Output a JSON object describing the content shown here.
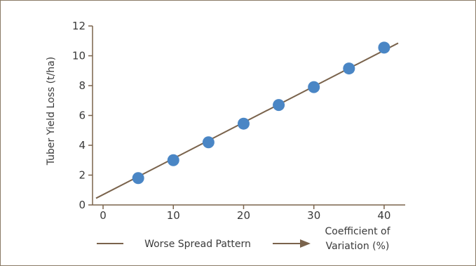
{
  "chart_data": {
    "type": "scatter",
    "x": [
      5,
      10,
      15,
      20,
      25,
      30,
      35,
      40
    ],
    "y": [
      1.8,
      3.0,
      4.2,
      5.45,
      6.7,
      7.9,
      9.15,
      10.55
    ],
    "fit_line": {
      "x": [
        -1,
        42
      ],
      "y": [
        0.45,
        10.85
      ]
    },
    "xlim": [
      -1.5,
      43
    ],
    "ylim": [
      0,
      12
    ],
    "x_ticks": [
      "0",
      "10",
      "20",
      "30",
      "40"
    ],
    "y_ticks": [
      "0",
      "2",
      "4",
      "6",
      "8",
      "10",
      "12"
    ],
    "xlabel": "Coefficient of Variation (%)",
    "xlabel_line1": "Coefficient of",
    "xlabel_line2": "Variation (%)",
    "ylabel": "Tuber Yield Loss (t/ha)",
    "annotation": "Worse Spread Pattern",
    "grid": false,
    "colors": {
      "points": "#4a86c5",
      "line": "#7a634c",
      "axis": "#7a634c",
      "frame": "#8a7a66"
    }
  }
}
